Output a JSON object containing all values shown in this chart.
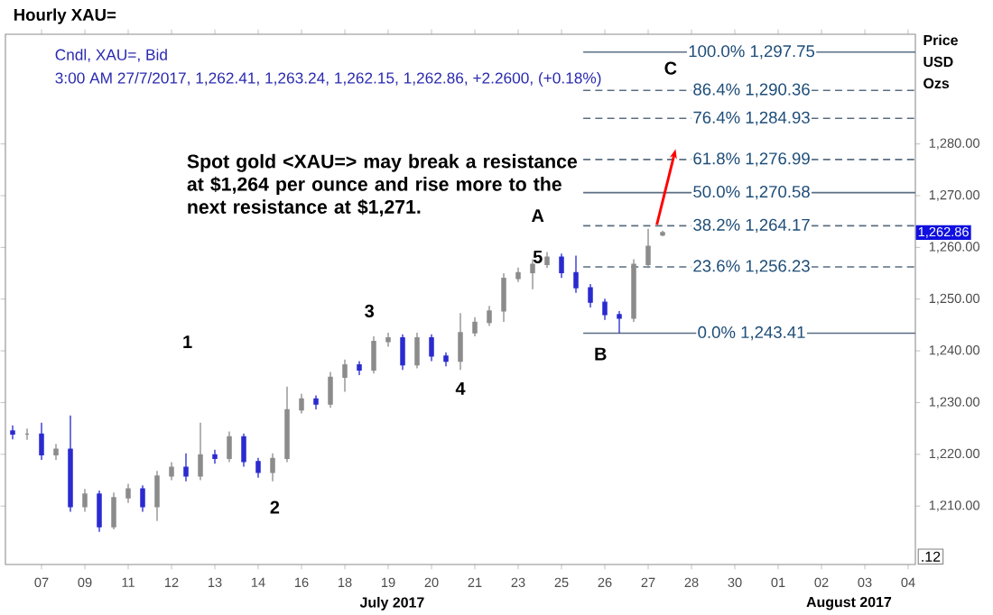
{
  "chart_data": {
    "type": "candlestick",
    "title": "Hourly XAU=",
    "subtitle": "Cndl, XAU=, Bid",
    "ylabel": "Price USD Ozs",
    "colors": [
      "#2b2bd0",
      "#8c8c8c",
      "#2b2bd0",
      "#8c8c8c",
      "#2b2bd0",
      "#8c8c8c",
      "#2b2bd0",
      "#8c8c8c",
      "#8c8c8c",
      "#2b2bd0",
      "#8c8c8c",
      "#8c8c8c",
      "#2b2bd0",
      "#8c8c8c",
      "#2b2bd0",
      "#8c8c8c",
      "#2b2bd0",
      "#2b2bd0",
      "#8c8c8c",
      "#8c8c8c",
      "#8c8c8c",
      "#2b2bd0",
      "#8c8c8c",
      "#8c8c8c",
      "#2b2bd0",
      "#8c8c8c",
      "#8c8c8c",
      "#2b2bd0",
      "#8c8c8c",
      "#2b2bd0",
      "#2b2bd0",
      "#8c8c8c",
      "#8c8c8c",
      "#8c8c8c",
      "#8c8c8c",
      "#8c8c8c",
      "#8c8c8c",
      "#8c8c8c",
      "#2b2bd0",
      "#2b2bd0",
      "#2b2bd0",
      "#2b2bd0",
      "#2b2bd0",
      "#8c8c8c",
      "#8c8c8c",
      "#8c8c8c",
      null,
      null,
      null,
      null,
      null,
      null,
      null,
      null,
      null,
      null,
      null,
      null,
      null,
      null,
      null,
      null,
      null
    ],
    "categories": [
      null,
      null,
      "07",
      null,
      null,
      "09",
      null,
      null,
      "11",
      null,
      null,
      "12",
      null,
      null,
      "13",
      null,
      null,
      "14",
      null,
      null,
      "16",
      null,
      null,
      "18",
      null,
      null,
      "19",
      null,
      null,
      "20",
      null,
      null,
      "21",
      null,
      null,
      "23",
      null,
      null,
      "25",
      null,
      null,
      "26",
      null,
      null,
      "27",
      null,
      null,
      "28",
      null,
      null,
      "30",
      null,
      null,
      "01",
      null,
      null,
      "02",
      null,
      null,
      "03",
      null,
      null,
      "04"
    ],
    "ohlc": [
      [
        1224.5,
        1225.6,
        1222.9,
        1223.9
      ],
      [
        1223.9,
        1225.0,
        1222.8,
        1223.9
      ],
      [
        1223.9,
        1226.1,
        1218.9,
        1219.9
      ],
      [
        1219.9,
        1222.0,
        1218.9,
        1221.0
      ],
      [
        1221.0,
        1227.5,
        1208.9,
        1209.9
      ],
      [
        1209.9,
        1213.3,
        1208.9,
        1212.3
      ],
      [
        1212.3,
        1213.0,
        1205.0,
        1206.0
      ],
      [
        1206.0,
        1212.6,
        1205.5,
        1211.6
      ],
      [
        1211.6,
        1214.3,
        1210.6,
        1213.3
      ],
      [
        1213.3,
        1214.0,
        1208.9,
        1209.9
      ],
      [
        1209.9,
        1216.8,
        1207.1,
        1215.8
      ],
      [
        1215.8,
        1218.5,
        1215.0,
        1217.5
      ],
      [
        1217.5,
        1220.2,
        1214.8,
        1215.8
      ],
      [
        1215.8,
        1226.1,
        1215.0,
        1219.9
      ],
      [
        1219.9,
        1220.9,
        1218.2,
        1219.2
      ],
      [
        1219.2,
        1224.4,
        1218.5,
        1223.4
      ],
      [
        1223.4,
        1224.0,
        1217.6,
        1218.6
      ],
      [
        1218.6,
        1219.3,
        1215.5,
        1216.5
      ],
      [
        1216.5,
        1220.2,
        1214.8,
        1219.2
      ],
      [
        1219.2,
        1233.1,
        1218.5,
        1228.6
      ],
      [
        1228.6,
        1231.7,
        1227.9,
        1230.7
      ],
      [
        1230.7,
        1231.4,
        1228.7,
        1229.7
      ],
      [
        1229.7,
        1235.9,
        1229.0,
        1234.9
      ],
      [
        1234.9,
        1238.3,
        1232.1,
        1237.3
      ],
      [
        1237.3,
        1238.0,
        1235.3,
        1236.3
      ],
      [
        1236.3,
        1242.8,
        1235.6,
        1241.8
      ],
      [
        1241.8,
        1243.5,
        1240.8,
        1242.5
      ],
      [
        1242.5,
        1243.2,
        1236.3,
        1237.3
      ],
      [
        1237.3,
        1243.5,
        1236.6,
        1242.5
      ],
      [
        1242.5,
        1243.2,
        1238.0,
        1239.0
      ],
      [
        1239.0,
        1239.7,
        1237.0,
        1238.0
      ],
      [
        1238.0,
        1247.3,
        1236.3,
        1243.5
      ],
      [
        1243.5,
        1246.5,
        1242.8,
        1245.5
      ],
      [
        1245.5,
        1248.7,
        1244.8,
        1247.7
      ],
      [
        1247.7,
        1255.0,
        1245.6,
        1254.0
      ],
      [
        1254.0,
        1256.1,
        1253.3,
        1255.1
      ],
      [
        1255.1,
        1257.7,
        1251.9,
        1256.7
      ],
      [
        1256.7,
        1259.1,
        1256.0,
        1258.1
      ],
      [
        1258.1,
        1258.8,
        1254.1,
        1255.1
      ],
      [
        1255.1,
        1258.4,
        1251.2,
        1252.2
      ],
      [
        1252.2,
        1252.9,
        1248.4,
        1249.4
      ],
      [
        1249.4,
        1250.1,
        1246.0,
        1247.0
      ],
      [
        1247.0,
        1247.7,
        1243.4,
        1246.3
      ],
      [
        1246.3,
        1257.7,
        1245.6,
        1256.7
      ],
      [
        1256.7,
        1263.6,
        1256.0,
        1260.2
      ],
      [
        1262.41,
        1263.24,
        1262.15,
        1262.86
      ],
      null,
      null,
      null,
      null,
      null,
      null,
      null,
      null,
      null,
      null,
      null,
      null,
      null,
      null,
      null,
      null,
      null
    ],
    "ylim": [
      1198.7,
      1301.2
    ],
    "yticks": [
      {
        "value": 1210,
        "label": "1,210.00"
      },
      {
        "value": 1220,
        "label": "1,220.00"
      },
      {
        "value": 1230,
        "label": "1,230.00"
      },
      {
        "value": 1240,
        "label": "1,240.00"
      },
      {
        "value": 1250,
        "label": "1,250.00"
      },
      {
        "value": 1260,
        "label": "1,260.00"
      },
      {
        "value": 1270,
        "label": "1,270.00"
      },
      {
        "value": 1280,
        "label": "1,280.00"
      }
    ],
    "ref_lines": [
      {
        "axis": "y",
        "value": 1297.75,
        "label": "100.0% 1,297.75",
        "line_style": "solid",
        "color": "#5a6e82"
      },
      {
        "axis": "y",
        "value": 1290.36,
        "label": "86.4% 1,290.36",
        "line_style": "dashed",
        "color": "#5a6e82"
      },
      {
        "axis": "y",
        "value": 1284.93,
        "label": "76.4% 1,284.93",
        "line_style": "dashed",
        "color": "#5a6e82"
      },
      {
        "axis": "y",
        "value": 1276.99,
        "label": "61.8% 1,276.99",
        "line_style": "dashed",
        "color": "#5a6e82"
      },
      {
        "axis": "y",
        "value": 1270.58,
        "label": "50.0% 1,270.58",
        "line_style": "solid",
        "color": "#5a6e82"
      },
      {
        "axis": "y",
        "value": 1264.17,
        "label": "38.2% 1,264.17",
        "line_style": "dashed",
        "color": "#5a6e82"
      },
      {
        "axis": "y",
        "value": 1256.23,
        "label": "23.6% 1,256.23",
        "line_style": "dashed",
        "color": "#5a6e82"
      },
      {
        "axis": "y",
        "value": 1243.41,
        "label": "0.0% 1,243.41",
        "line_style": "solid",
        "color": "#5a6e82"
      }
    ],
    "annotations": [
      "Spot gold <XAU=> may break a resistance at $1,264 per ounce and rise more to the next resistance at $1,271.",
      "3:00 AM 27/7/2017, 1,262.41, 1,263.24, 1,262.15, 1,262.86, +2.2600, (+0.18%)",
      ".12",
      "1",
      "2",
      "3",
      "4",
      "5",
      "A",
      "B",
      "C",
      "1,262.86",
      "July 2017",
      "August 2017"
    ],
    "grid": false
  }
}
